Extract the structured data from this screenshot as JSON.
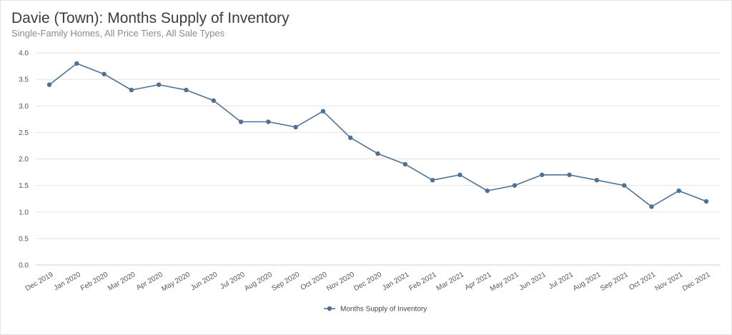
{
  "header": {
    "title": "Davie (Town): Months Supply of Inventory",
    "subtitle": "Single-Family Homes, All Price Tiers, All Sale Types"
  },
  "chart_data": {
    "type": "line",
    "title": "Davie (Town): Months Supply of Inventory",
    "subtitle": "Single-Family Homes, All Price Tiers, All Sale Types",
    "xlabel": "",
    "ylabel": "",
    "ylim": [
      0,
      4
    ],
    "yticks": [
      "0.0",
      "0.5",
      "1.0",
      "1.5",
      "2.0",
      "2.5",
      "3.0",
      "3.5",
      "4.0"
    ],
    "grid": true,
    "legend_position": "bottom",
    "categories": [
      "Dec 2019",
      "Jan 2020",
      "Feb 2020",
      "Mar 2020",
      "Apr 2020",
      "May 2020",
      "Jun 2020",
      "Jul 2020",
      "Aug 2020",
      "Sep 2020",
      "Oct 2020",
      "Nov 2020",
      "Dec 2020",
      "Jan 2021",
      "Feb 2021",
      "Mar 2021",
      "Apr 2021",
      "May 2021",
      "Jun 2021",
      "Jul 2021",
      "Aug 2021",
      "Sep 2021",
      "Oct 2021",
      "Nov 2021",
      "Dec 2021"
    ],
    "series": [
      {
        "name": "Months Supply of Inventory",
        "color": "#4e7196",
        "values": [
          3.4,
          3.8,
          3.6,
          3.3,
          3.4,
          3.3,
          3.1,
          2.7,
          2.7,
          2.6,
          2.9,
          2.4,
          2.1,
          1.9,
          1.6,
          1.7,
          1.4,
          1.5,
          1.7,
          1.7,
          1.6,
          1.5,
          1.1,
          1.4,
          1.2
        ]
      }
    ]
  }
}
